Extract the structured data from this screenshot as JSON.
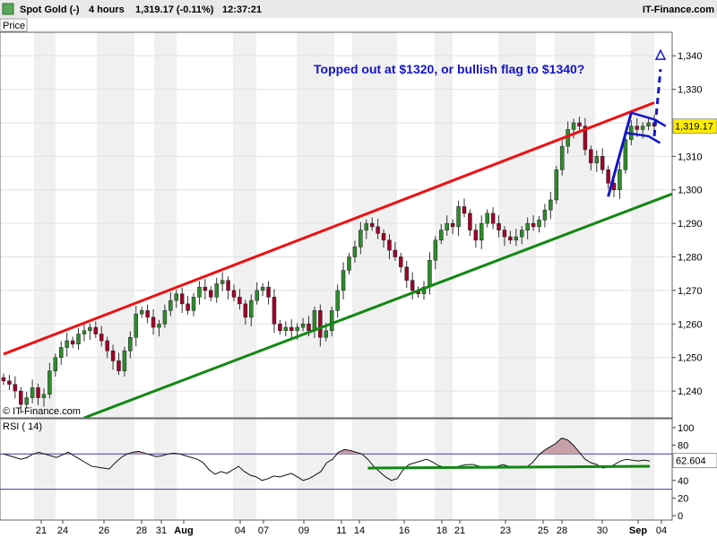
{
  "header": {
    "instrument": "Spot Gold (-)",
    "timeframe": "4 hours",
    "last": "1,319.17 (-0.11%)",
    "time": "12:37:21",
    "brand": "IT-Finance.com"
  },
  "panel_label": "Price",
  "watermark": "© IT-Finance.com",
  "rsi_label": "RSI ( 14)",
  "colors": {
    "up": "#2e8b2e",
    "down": "#a0002a",
    "resistance": "#ee1111",
    "support": "#118811",
    "annotation": "#1414c8",
    "rsi_zone": "#c8a0a8"
  },
  "chart_data": [
    {
      "type": "candlestick",
      "title": "",
      "annotation": "Topped out at $1320, or bullish flag to $1340?",
      "ylim": [
        1232,
        1347
      ],
      "y_ticks": [
        1240,
        1250,
        1260,
        1270,
        1280,
        1290,
        1300,
        1310,
        1320,
        1330,
        1340
      ],
      "y_tick_labels": [
        "1,240",
        "1,250",
        "1,260",
        "1,270",
        "1,280",
        "1,290",
        "1,300",
        "1,310",
        "1,320",
        "1,330",
        "1,340"
      ],
      "last_price_label": "1,319.17",
      "x_labels": [
        "21",
        "24",
        "26",
        "28",
        "31",
        "Aug",
        "04",
        "07",
        "09",
        "11",
        "14",
        "16",
        "18",
        "21",
        "23",
        "25",
        "28",
        "30",
        "Sep",
        "04"
      ],
      "grid": "vertical-shaded-bands",
      "series": [
        {
          "name": "",
          "values": [
            1243,
            1242,
            1240,
            1236,
            1238,
            1241,
            1238,
            1239,
            1246,
            1250,
            1253,
            1255,
            1254,
            1257,
            1258,
            1259,
            1257,
            1255,
            1252,
            1249,
            1246,
            1252,
            1256,
            1263,
            1264,
            1262,
            1259,
            1260,
            1264,
            1267,
            1269,
            1266,
            1264,
            1268,
            1271,
            1270,
            1268,
            1272,
            1273,
            1270,
            1268,
            1266,
            1262,
            1267,
            1270,
            1271,
            1268,
            1260,
            1258,
            1259,
            1258,
            1259,
            1260,
            1258,
            1264,
            1256,
            1258,
            1264,
            1270,
            1276,
            1280,
            1283,
            1288,
            1290,
            1289,
            1287,
            1285,
            1282,
            1280,
            1277,
            1273,
            1270,
            1269,
            1271,
            1279,
            1285,
            1288,
            1290,
            1289,
            1295,
            1293,
            1288,
            1285,
            1290,
            1293,
            1290,
            1288,
            1286,
            1285,
            1286,
            1288,
            1290,
            1289,
            1291,
            1294,
            1297,
            1306,
            1313,
            1318,
            1320,
            1319,
            1312,
            1308,
            1310,
            1306,
            1302,
            1300,
            1306,
            1315,
            1319,
            1318,
            1319,
            1320,
            1319
          ]
        }
      ],
      "lines": [
        {
          "name": "resistance",
          "from": {
            "x_index": 0,
            "y": 1251
          },
          "to": {
            "x_index": 113,
            "y": 1326
          }
        },
        {
          "name": "support",
          "from": {
            "x_index": 14,
            "y": 1232
          },
          "to": {
            "x_index": 121,
            "y": 1302
          }
        }
      ],
      "target": {
        "y": 1340
      }
    },
    {
      "type": "line",
      "title": "",
      "ylim": [
        -5,
        110
      ],
      "y_ticks": [
        0,
        20,
        40,
        60,
        80,
        100
      ],
      "overbought": 70,
      "oversold": 30,
      "last_value_label": "62.604",
      "series": [
        {
          "name": "",
          "values": [
            70,
            68,
            66,
            64,
            66,
            70,
            72,
            70,
            68,
            66,
            69,
            72,
            68,
            64,
            60,
            56,
            55,
            54,
            53,
            60,
            66,
            70,
            72,
            73,
            71,
            69,
            67,
            68,
            70,
            71,
            70,
            68,
            66,
            64,
            60,
            52,
            47,
            50,
            48,
            52,
            56,
            50,
            46,
            44,
            40,
            42,
            45,
            44,
            46,
            48,
            44,
            40,
            42,
            46,
            50,
            60,
            64,
            72,
            75,
            74,
            72,
            70,
            64,
            56,
            50,
            44,
            40,
            42,
            52,
            58,
            60,
            62,
            64,
            61,
            57,
            55,
            54,
            55,
            57,
            58,
            58,
            56,
            55,
            54,
            56,
            58,
            56,
            55,
            54,
            55,
            60,
            68,
            74,
            78,
            82,
            88,
            86,
            80,
            72,
            64,
            60,
            58,
            54,
            55,
            58,
            62,
            64,
            63,
            62,
            63,
            62
          ]
        }
      ],
      "support_line": {
        "from": {
          "x_index": 62,
          "y": 54
        },
        "to": {
          "x_index": 110,
          "y": 56
        }
      }
    }
  ]
}
